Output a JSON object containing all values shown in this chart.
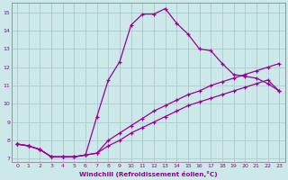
{
  "xlabel": "Windchill (Refroidissement éolien,°C)",
  "bg_color": "#cce8e8",
  "grid_color": "#aacccc",
  "line_color": "#990099",
  "xlim": [
    -0.5,
    23.5
  ],
  "ylim": [
    6.8,
    15.5
  ],
  "xticks": [
    0,
    1,
    2,
    3,
    4,
    5,
    6,
    7,
    8,
    9,
    10,
    11,
    12,
    13,
    14,
    15,
    16,
    17,
    18,
    19,
    20,
    21,
    22,
    23
  ],
  "yticks": [
    7,
    8,
    9,
    10,
    11,
    12,
    13,
    14,
    15
  ],
  "line1_x": [
    0,
    1,
    2,
    3,
    4,
    5,
    6,
    7,
    8,
    9,
    10,
    11,
    12,
    13,
    14,
    15,
    16,
    17,
    18,
    19,
    20,
    21,
    22,
    23
  ],
  "line1_y": [
    7.8,
    7.7,
    7.5,
    7.1,
    7.1,
    7.1,
    7.2,
    9.3,
    11.3,
    12.3,
    14.3,
    14.9,
    14.9,
    15.2,
    14.4,
    13.8,
    13.0,
    12.9,
    12.2,
    11.6,
    11.5,
    11.4,
    11.1,
    10.7
  ],
  "line2_x": [
    0,
    1,
    2,
    3,
    4,
    5,
    6,
    7,
    8,
    9,
    10,
    11,
    12,
    13,
    14,
    15,
    16,
    17,
    18,
    19,
    20,
    21,
    22,
    23
  ],
  "line2_y": [
    7.8,
    7.7,
    7.5,
    7.1,
    7.1,
    7.1,
    7.2,
    7.3,
    8.0,
    8.4,
    8.8,
    9.2,
    9.6,
    9.9,
    10.2,
    10.5,
    10.7,
    11.0,
    11.2,
    11.4,
    11.6,
    11.8,
    12.0,
    12.2
  ],
  "line3_x": [
    0,
    1,
    2,
    3,
    4,
    5,
    6,
    7,
    8,
    9,
    10,
    11,
    12,
    13,
    14,
    15,
    16,
    17,
    18,
    19,
    20,
    21,
    22,
    23
  ],
  "line3_y": [
    7.8,
    7.7,
    7.5,
    7.1,
    7.1,
    7.1,
    7.2,
    7.3,
    7.7,
    8.0,
    8.4,
    8.7,
    9.0,
    9.3,
    9.6,
    9.9,
    10.1,
    10.3,
    10.5,
    10.7,
    10.9,
    11.1,
    11.3,
    10.7
  ]
}
